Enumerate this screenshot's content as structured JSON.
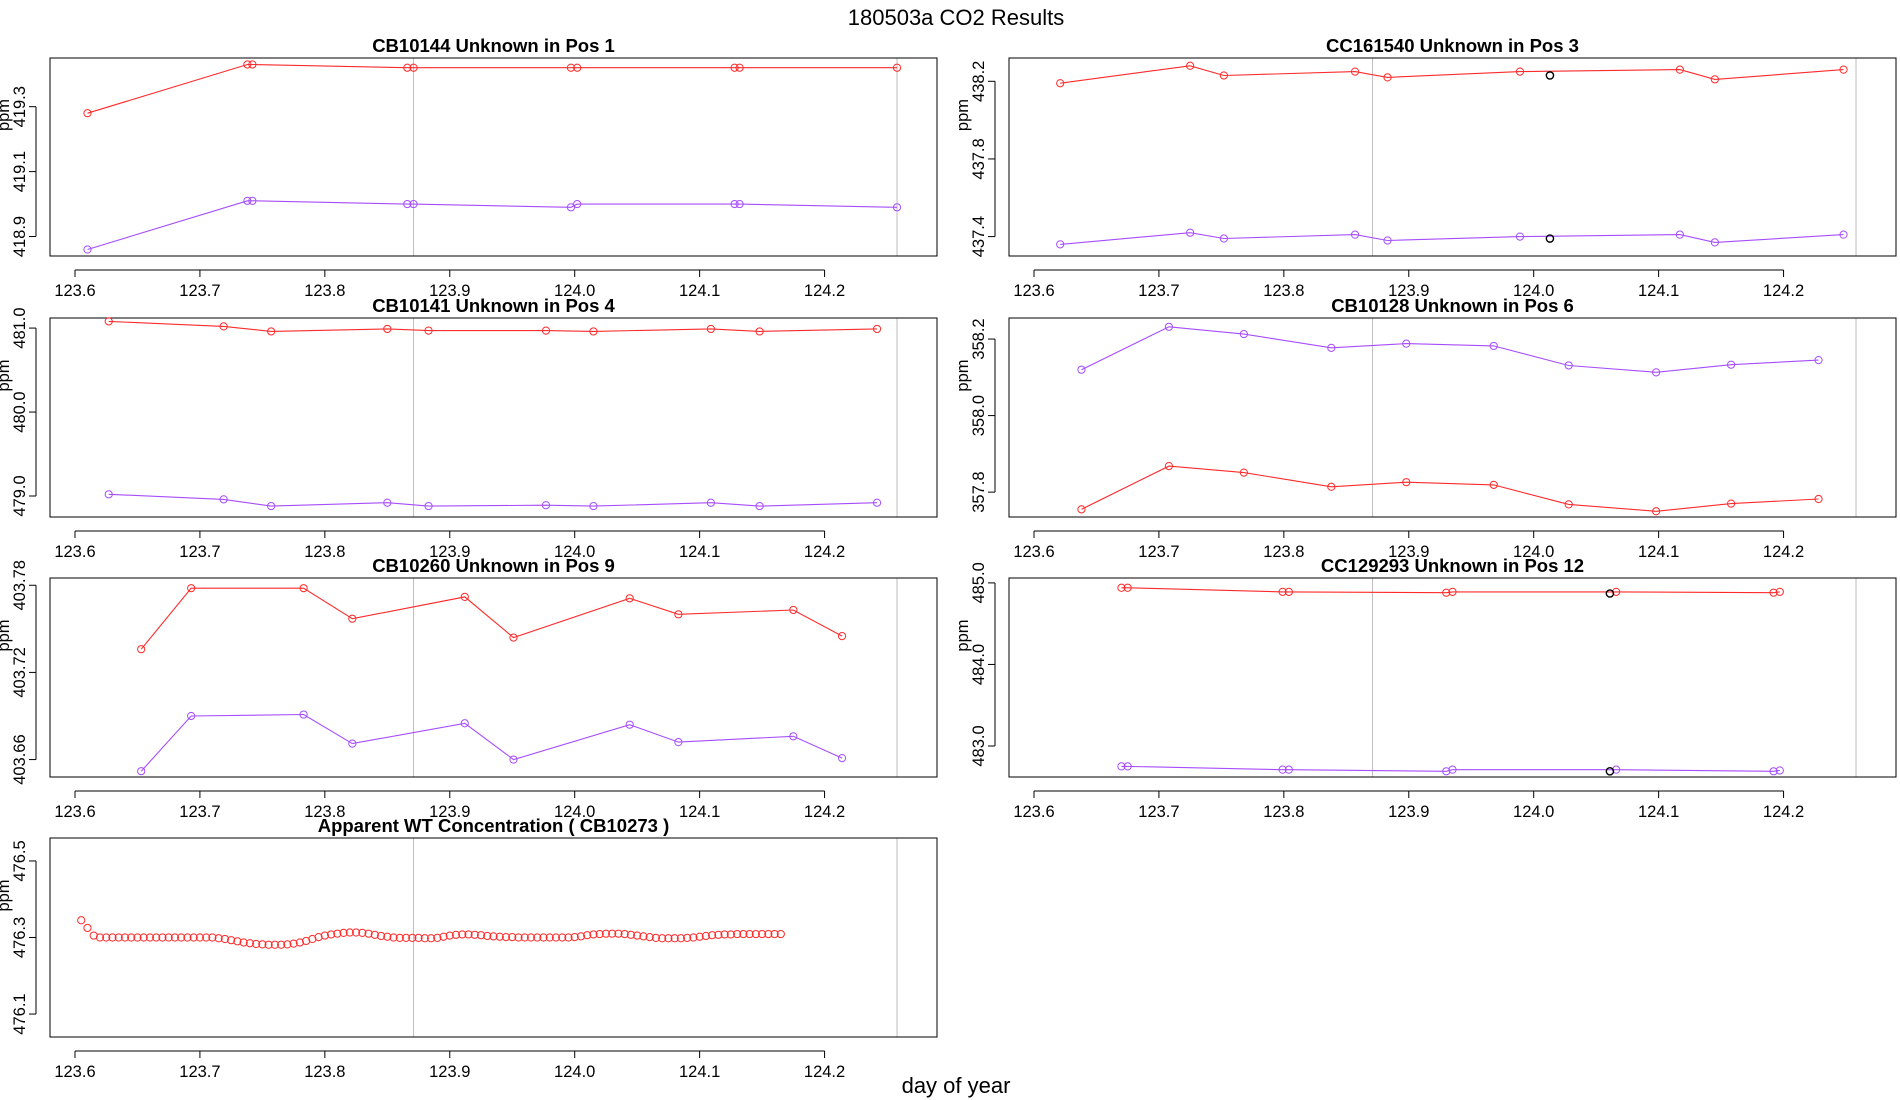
{
  "figure": {
    "main_title": "180503a  CO2 Results",
    "xlabel": "day of year"
  },
  "chart_data": [
    {
      "type": "line",
      "title": "CB10144    Unknown in Pos 1",
      "ylabel": "ppm",
      "xlim": [
        123.58,
        124.29
      ],
      "ylim": [
        418.84,
        419.45
      ],
      "xticks": [
        "123.6",
        "123.7",
        "123.8",
        "123.9",
        "124.0",
        "124.1",
        "124.2"
      ],
      "yticks": [
        "418.9",
        "419.1",
        "419.3"
      ],
      "vlines": [
        123.871,
        124.258
      ],
      "series": [
        {
          "color": "#ff2a2a",
          "x": [
            123.61,
            123.738,
            123.742,
            123.866,
            123.871,
            123.997,
            124.002,
            124.128,
            124.132,
            124.258
          ],
          "y": [
            419.28,
            419.43,
            419.43,
            419.42,
            419.42,
            419.42,
            419.42,
            419.42,
            419.42,
            419.42
          ]
        },
        {
          "color": "#a64dff",
          "x": [
            123.61,
            123.738,
            123.742,
            123.866,
            123.871,
            123.997,
            124.002,
            124.128,
            124.132,
            124.258
          ],
          "y": [
            418.86,
            419.01,
            419.01,
            419.0,
            419.0,
            418.99,
            419.0,
            419.0,
            419.0,
            418.99
          ]
        }
      ],
      "extra_points": []
    },
    {
      "type": "line",
      "title": "CC161540    Unknown in Pos 3",
      "ylabel": "ppm",
      "xlim": [
        123.58,
        124.29
      ],
      "ylim": [
        437.3,
        438.32
      ],
      "xticks": [
        "123.6",
        "123.7",
        "123.8",
        "123.9",
        "124.0",
        "124.1",
        "124.2"
      ],
      "yticks": [
        "437.4",
        "437.8",
        "438.2"
      ],
      "vlines": [
        123.871,
        124.258
      ],
      "series": [
        {
          "color": "#ff2a2a",
          "x": [
            123.621,
            123.725,
            123.752,
            123.857,
            123.883,
            123.989,
            124.117,
            124.145,
            124.248
          ],
          "y": [
            438.19,
            438.28,
            438.23,
            438.25,
            438.22,
            438.25,
            438.26,
            438.21,
            438.26
          ]
        },
        {
          "color": "#a64dff",
          "x": [
            123.621,
            123.725,
            123.752,
            123.857,
            123.883,
            123.989,
            124.117,
            124.145,
            124.248
          ],
          "y": [
            437.36,
            437.42,
            437.39,
            437.41,
            437.38,
            437.4,
            437.41,
            437.37,
            437.41
          ]
        }
      ],
      "extra_points": [
        {
          "color": "#000000",
          "x": 124.013,
          "y": 438.23
        },
        {
          "color": "#000000",
          "x": 124.013,
          "y": 437.39
        }
      ]
    },
    {
      "type": "line",
      "title": "CB10141    Unknown in Pos 4",
      "ylabel": "ppm",
      "xlim": [
        123.58,
        124.29
      ],
      "ylim": [
        478.75,
        481.12
      ],
      "xticks": [
        "123.6",
        "123.7",
        "123.8",
        "123.9",
        "124.0",
        "124.1",
        "124.2"
      ],
      "yticks": [
        "479.0",
        "480.0",
        "481.0"
      ],
      "vlines": [
        123.871,
        124.258
      ],
      "series": [
        {
          "color": "#ff2a2a",
          "x": [
            123.627,
            123.719,
            123.757,
            123.85,
            123.883,
            123.977,
            124.015,
            124.109,
            124.148,
            124.242
          ],
          "y": [
            481.08,
            481.02,
            480.96,
            480.99,
            480.97,
            480.97,
            480.96,
            480.99,
            480.96,
            480.99
          ]
        },
        {
          "color": "#a64dff",
          "x": [
            123.627,
            123.719,
            123.757,
            123.85,
            123.883,
            123.977,
            124.015,
            124.109,
            124.148,
            124.242
          ],
          "y": [
            479.02,
            478.96,
            478.88,
            478.92,
            478.88,
            478.89,
            478.88,
            478.92,
            478.88,
            478.92
          ]
        }
      ],
      "extra_points": []
    },
    {
      "type": "line",
      "title": "CB10128    Unknown in Pos 6",
      "ylabel": "ppm",
      "xlim": [
        123.58,
        124.29
      ],
      "ylim": [
        357.735,
        358.255
      ],
      "xticks": [
        "123.6",
        "123.7",
        "123.8",
        "123.9",
        "124.0",
        "124.1",
        "124.2"
      ],
      "yticks": [
        "357.8",
        "358.0",
        "358.2"
      ],
      "vlines": [
        123.871,
        124.258
      ],
      "series": [
        {
          "color": "#ff2a2a",
          "x": [
            123.638,
            123.708,
            123.768,
            123.838,
            123.898,
            123.968,
            124.028,
            124.098,
            124.158,
            124.228
          ],
          "y": [
            357.755,
            357.868,
            357.851,
            357.814,
            357.826,
            357.819,
            357.768,
            357.75,
            357.77,
            357.782
          ]
        },
        {
          "color": "#a64dff",
          "x": [
            123.638,
            123.708,
            123.768,
            123.838,
            123.898,
            123.968,
            124.028,
            124.098,
            124.158,
            124.228
          ],
          "y": [
            358.12,
            358.232,
            358.213,
            358.177,
            358.188,
            358.182,
            358.131,
            358.113,
            358.133,
            358.145
          ]
        }
      ],
      "extra_points": []
    },
    {
      "type": "line",
      "title": "CB10260    Unknown in Pos 9",
      "ylabel": "ppm",
      "xlim": [
        123.58,
        124.29
      ],
      "ylim": [
        403.648,
        403.785
      ],
      "xticks": [
        "123.6",
        "123.7",
        "123.8",
        "123.9",
        "124.0",
        "124.1",
        "124.2"
      ],
      "yticks": [
        "403.66",
        "403.72",
        "403.78"
      ],
      "vlines": [
        123.871,
        124.258
      ],
      "series": [
        {
          "color": "#ff2a2a",
          "x": [
            123.653,
            123.693,
            123.783,
            123.822,
            123.912,
            123.951,
            124.044,
            124.083,
            124.175,
            124.214
          ],
          "y": [
            403.736,
            403.778,
            403.778,
            403.757,
            403.772,
            403.744,
            403.771,
            403.76,
            403.763,
            403.745
          ]
        },
        {
          "color": "#a64dff",
          "x": [
            123.653,
            123.693,
            123.783,
            123.822,
            123.912,
            123.951,
            124.044,
            124.083,
            124.175,
            124.214
          ],
          "y": [
            403.652,
            403.69,
            403.691,
            403.671,
            403.685,
            403.66,
            403.684,
            403.672,
            403.676,
            403.661
          ]
        }
      ],
      "extra_points": []
    },
    {
      "type": "line",
      "title": "CC129293    Unknown in Pos 12",
      "ylabel": "ppm",
      "xlim": [
        123.58,
        124.29
      ],
      "ylim": [
        482.62,
        485.06
      ],
      "xticks": [
        "123.6",
        "123.7",
        "123.8",
        "123.9",
        "124.0",
        "124.1",
        "124.2"
      ],
      "yticks": [
        "483.0",
        "484.0",
        "485.0"
      ],
      "vlines": [
        123.871,
        124.258
      ],
      "series": [
        {
          "color": "#ff2a2a",
          "x": [
            123.67,
            123.675,
            123.799,
            123.804,
            123.93,
            123.935,
            124.066,
            124.192,
            124.197
          ],
          "y": [
            484.94,
            484.94,
            484.89,
            484.89,
            484.88,
            484.89,
            484.89,
            484.88,
            484.89
          ]
        },
        {
          "color": "#a64dff",
          "x": [
            123.67,
            123.675,
            123.799,
            123.804,
            123.93,
            123.935,
            124.066,
            124.192,
            124.197
          ],
          "y": [
            482.75,
            482.75,
            482.71,
            482.71,
            482.69,
            482.71,
            482.71,
            482.69,
            482.7
          ]
        }
      ],
      "extra_points": [
        {
          "color": "#000000",
          "x": 124.061,
          "y": 484.87
        },
        {
          "color": "#000000",
          "x": 124.061,
          "y": 482.69
        }
      ]
    },
    {
      "type": "scatter",
      "title": "Apparent WT Concentration ( CB10273 )",
      "ylabel": "ppm",
      "xlim": [
        123.58,
        124.29
      ],
      "ylim": [
        476.04,
        476.56
      ],
      "xticks": [
        "123.6",
        "123.7",
        "123.8",
        "123.9",
        "124.0",
        "124.1",
        "124.2"
      ],
      "yticks": [
        "476.1",
        "476.3",
        "476.5"
      ],
      "vlines": [
        123.871,
        124.258
      ],
      "series": [
        {
          "color": "#ff2a2a",
          "mode": "points",
          "x_start": 123.605,
          "x_step": 0.005,
          "y": [
            476.345,
            476.325,
            476.305,
            476.3,
            476.3,
            476.3,
            476.3,
            476.3,
            476.3,
            476.3,
            476.3,
            476.3,
            476.3,
            476.3,
            476.3,
            476.3,
            476.3,
            476.3,
            476.3,
            476.3,
            476.3,
            476.3,
            476.298,
            476.296,
            476.293,
            476.29,
            476.287,
            476.285,
            476.283,
            476.282,
            476.281,
            476.281,
            476.281,
            476.282,
            476.284,
            476.287,
            476.291,
            476.296,
            476.301,
            476.305,
            476.308,
            476.31,
            476.312,
            476.313,
            476.313,
            476.312,
            476.31,
            476.307,
            476.304,
            476.302,
            476.3,
            476.299,
            476.299,
            476.299,
            476.299,
            476.298,
            476.298,
            476.299,
            476.302,
            476.305,
            476.307,
            476.308,
            476.308,
            476.307,
            476.306,
            476.304,
            476.303,
            476.302,
            476.301,
            476.301,
            476.3,
            476.3,
            476.3,
            476.3,
            476.3,
            476.3,
            476.3,
            476.3,
            476.3,
            476.301,
            476.303,
            476.306,
            476.308,
            476.309,
            476.31,
            476.31,
            476.31,
            476.309,
            476.307,
            476.305,
            476.303,
            476.301,
            476.299,
            476.298,
            476.298,
            476.298,
            476.298,
            476.299,
            476.3,
            476.302,
            476.304,
            476.306,
            476.307,
            476.308,
            476.308,
            476.309,
            476.309,
            476.309,
            476.309,
            476.309,
            476.309,
            476.309,
            476.309
          ]
        }
      ],
      "extra_points": []
    }
  ]
}
